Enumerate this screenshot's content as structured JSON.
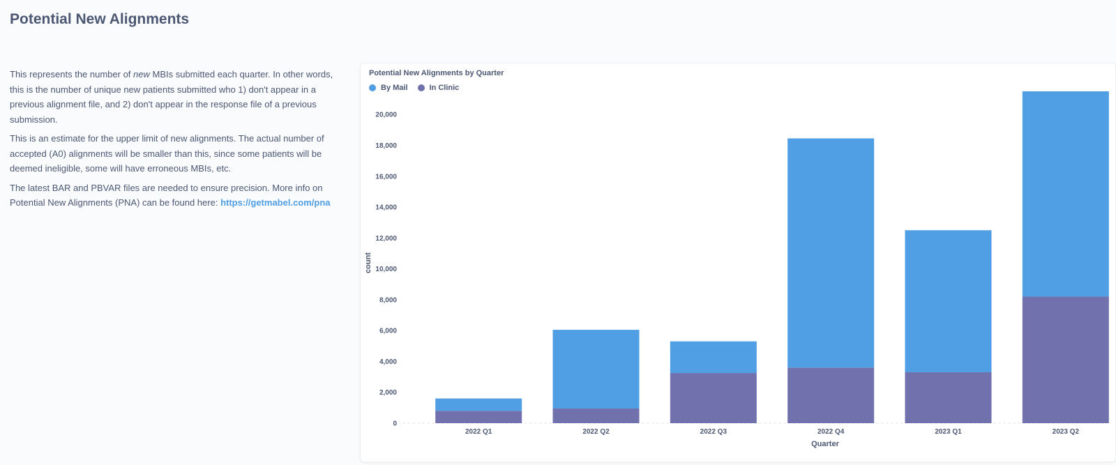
{
  "page": {
    "title": "Potential New Alignments"
  },
  "text_card": {
    "p1_before": "This represents the number of ",
    "p1_em": "new",
    "p1_after": " MBIs submitted each quarter. In other words, this is the number of unique new patients submitted who 1) don't appear in a previous alignment file, and 2) don't appear in the response file of a previous submission.",
    "p2": "This is an estimate for the upper limit of new alignments. The actual number of accepted (A0) alignments will be smaller than this, since some patients will be deemed ineligible, some will have erroneous MBIs, etc.",
    "p3_before": "The latest BAR and PBVAR files are needed to ensure precision. More info on Potential New Alignments (PNA) can be found here: ",
    "p3_link": "https://getmabel.com/pna"
  },
  "chart_data": {
    "type": "bar",
    "stacked": true,
    "title": "Potential New Alignments by Quarter",
    "xlabel": "Quarter",
    "ylabel": "count",
    "categories": [
      "2022 Q1",
      "2022 Q2",
      "2022 Q3",
      "2022 Q4",
      "2023 Q1",
      "2023 Q2"
    ],
    "series": [
      {
        "name": "In Clinic",
        "color": "#7172ad",
        "values": [
          800,
          950,
          3250,
          3600,
          3300,
          8200
        ]
      },
      {
        "name": "By Mail",
        "color": "#509ee3",
        "values": [
          800,
          5100,
          2050,
          14850,
          9200,
          13300
        ]
      }
    ],
    "legend_order": [
      "By Mail",
      "In Clinic"
    ],
    "ylim": [
      0,
      21500
    ],
    "yticks": [
      0,
      2000,
      4000,
      6000,
      8000,
      10000,
      12000,
      14000,
      16000,
      18000,
      20000
    ],
    "ytick_labels": [
      "0",
      "2,000",
      "4,000",
      "6,000",
      "8,000",
      "10,000",
      "12,000",
      "14,000",
      "16,000",
      "18,000",
      "20,000"
    ],
    "grid": false,
    "legend_position": "top-left"
  }
}
